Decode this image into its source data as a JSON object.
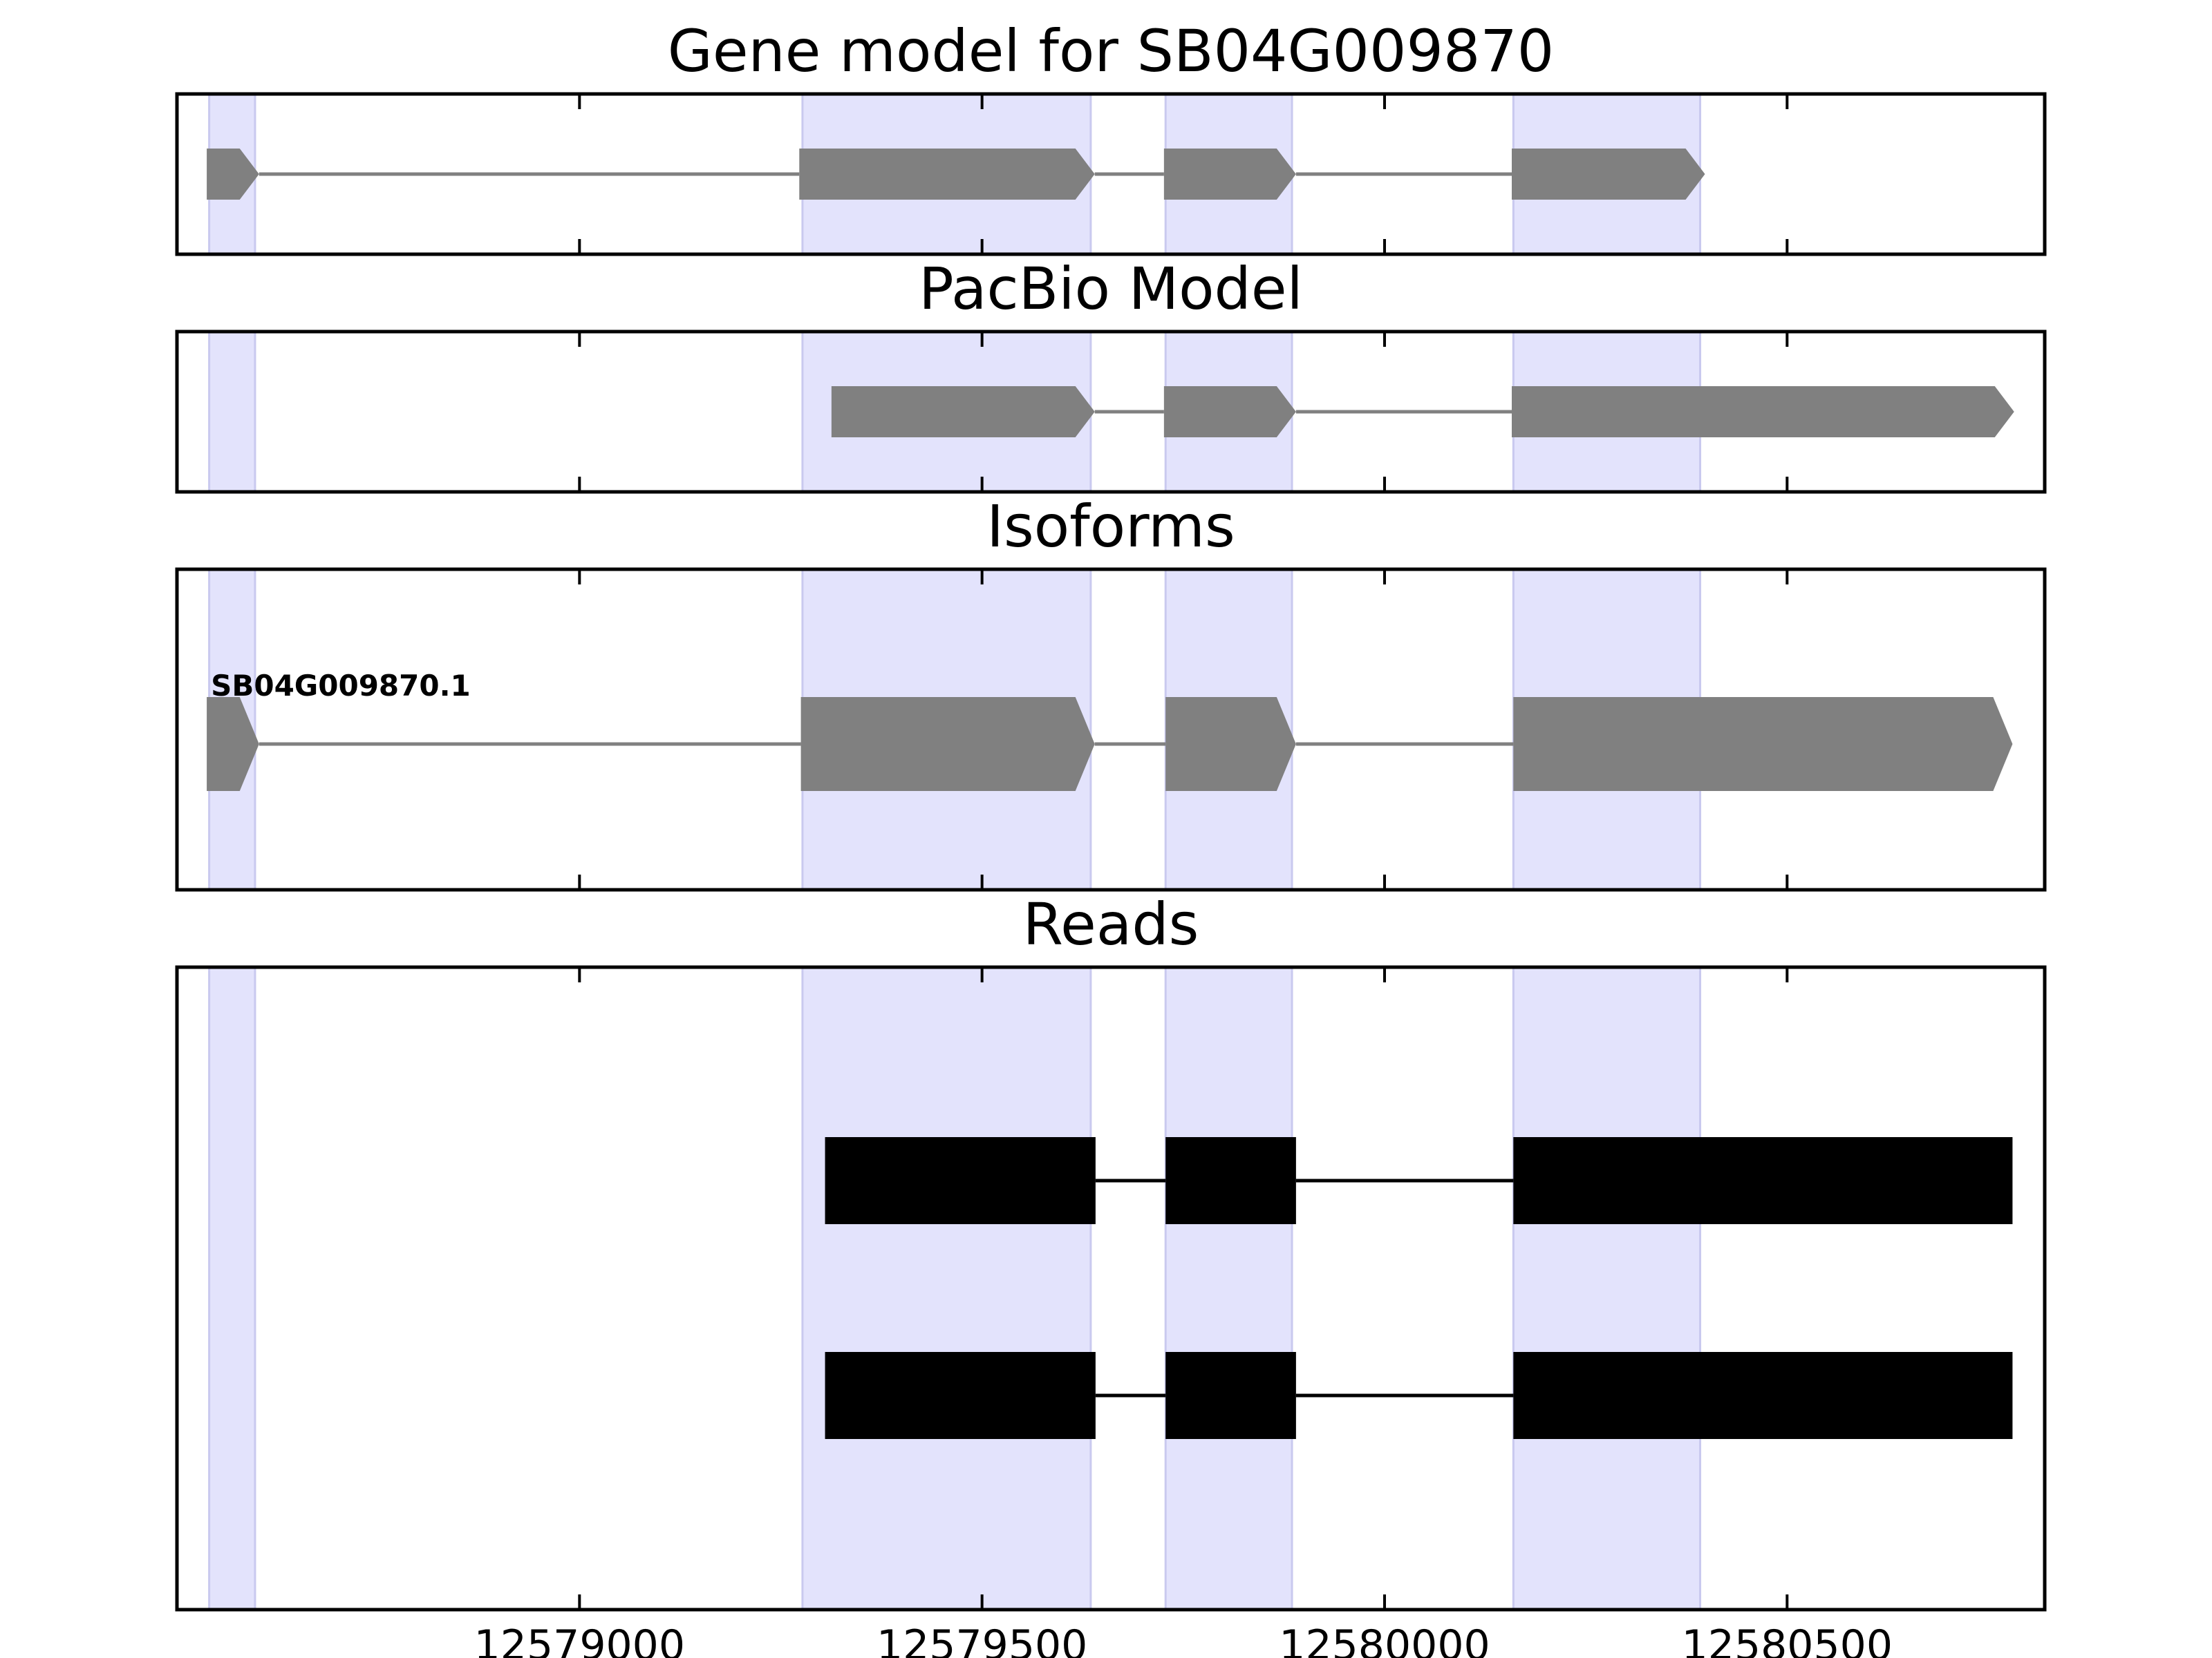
{
  "chart_data": {
    "type": "gene-model-tracks",
    "xlim": [
      12578500,
      12580820
    ],
    "x_ticks": [
      {
        "value": 12579000,
        "label": "12579000"
      },
      {
        "value": 12579500,
        "label": "12579500"
      },
      {
        "value": 12580000,
        "label": "12580000"
      },
      {
        "value": 12580500,
        "label": "12580500"
      }
    ],
    "highlight_regions": [
      [
        12578540,
        12578597
      ],
      [
        12579277,
        12579635
      ],
      [
        12579728,
        12579885
      ],
      [
        12580160,
        12580392
      ]
    ],
    "colors": {
      "highlight": "#e3e3fc",
      "highlight_edge": "#c9c9ef",
      "model": "#808080",
      "read": "#000000",
      "frame": "#000000"
    },
    "panels": [
      {
        "id": "gene-model",
        "title": "Gene model for SB04G009870",
        "transcripts": [
          {
            "label": "",
            "strand": "+",
            "exons": [
              [
                12578537,
                12578602
              ],
              [
                12579273,
                12579640
              ],
              [
                12579726,
                12579890
              ],
              [
                12580158,
                12580398
              ]
            ]
          }
        ]
      },
      {
        "id": "pacbio-model",
        "title": "PacBio Model",
        "transcripts": [
          {
            "label": "",
            "strand": "+",
            "exons": [
              [
                12579313,
                12579640
              ],
              [
                12579726,
                12579890
              ],
              [
                12580158,
                12580782
              ]
            ]
          }
        ]
      },
      {
        "id": "isoforms",
        "title": "Isoforms",
        "transcripts": [
          {
            "label": "SB04G009870.1",
            "strand": "+",
            "exons": [
              [
                12578537,
                12578602
              ],
              [
                12579275,
                12579640
              ],
              [
                12579728,
                12579890
              ],
              [
                12580160,
                12580780
              ]
            ]
          }
        ]
      },
      {
        "id": "reads",
        "title": "Reads",
        "reads": [
          {
            "exons": [
              [
                12579305,
                12579641
              ],
              [
                12579728,
                12579890
              ],
              [
                12580160,
                12580780
              ]
            ]
          },
          {
            "exons": [
              [
                12579305,
                12579641
              ],
              [
                12579728,
                12579890
              ],
              [
                12580160,
                12580780
              ]
            ]
          }
        ]
      }
    ]
  }
}
